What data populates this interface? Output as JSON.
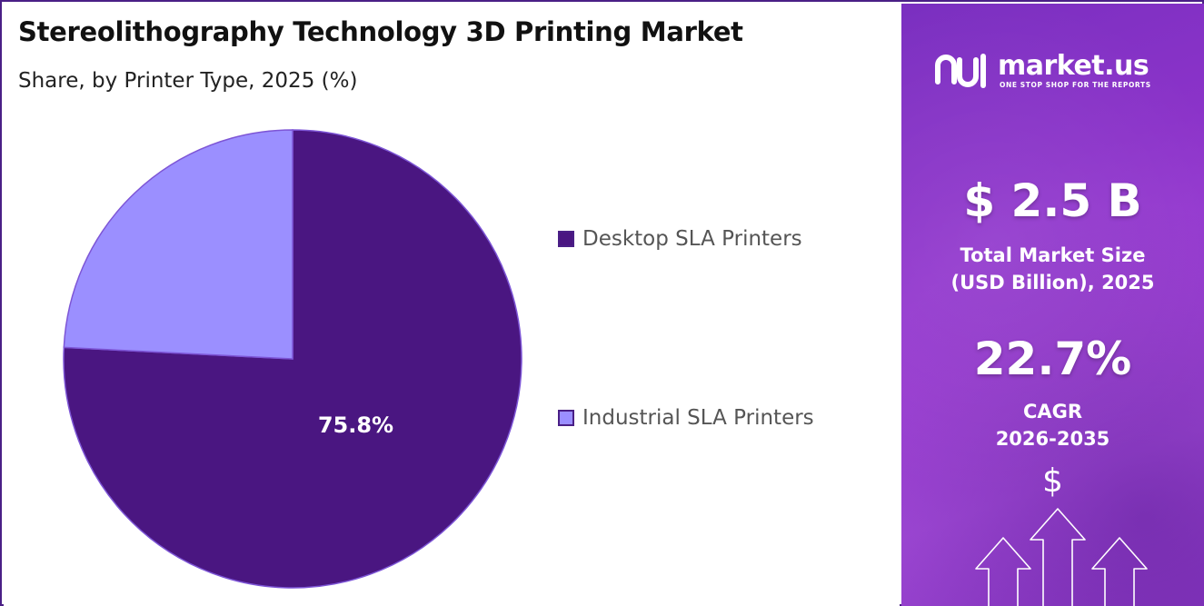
{
  "header": {
    "title": "Stereolithography Technology 3D Printing Market",
    "subtitle": "Share, by Printer Type, 2025 (%)"
  },
  "chart_data": {
    "type": "pie",
    "title": "Stereolithography Technology 3D Printing Market",
    "subtitle": "Share, by Printer Type, 2025 (%)",
    "categories": [
      "Desktop SLA Printers",
      "Industrial SLA Printers"
    ],
    "values": [
      75.8,
      24.2
    ],
    "data_labels": [
      "75.8%",
      ""
    ],
    "colors": [
      "#4a1681",
      "#9b8fff"
    ],
    "start_angle": "12 o'clock, clockwise",
    "legend_placement": "right"
  },
  "legend": {
    "items": [
      {
        "label": "Desktop SLA Printers",
        "color": "#4a1681"
      },
      {
        "label": "Industrial SLA Printers",
        "color": "#9b8fff"
      }
    ]
  },
  "sidebar": {
    "brand": "market.us",
    "tagline": "ONE STOP SHOP FOR THE REPORTS",
    "market_size_value": "$ 2.5 B",
    "market_size_label_1": "Total Market Size",
    "market_size_label_2": "(USD Billion), 2025",
    "cagr_value": "22.7%",
    "cagr_label_1": "CAGR",
    "cagr_label_2": "2026-2035",
    "dollar_symbol": "$",
    "background_color": "#8b33c9",
    "icons": [
      "market-us-logo-icon",
      "growth-arrows-icon"
    ]
  }
}
